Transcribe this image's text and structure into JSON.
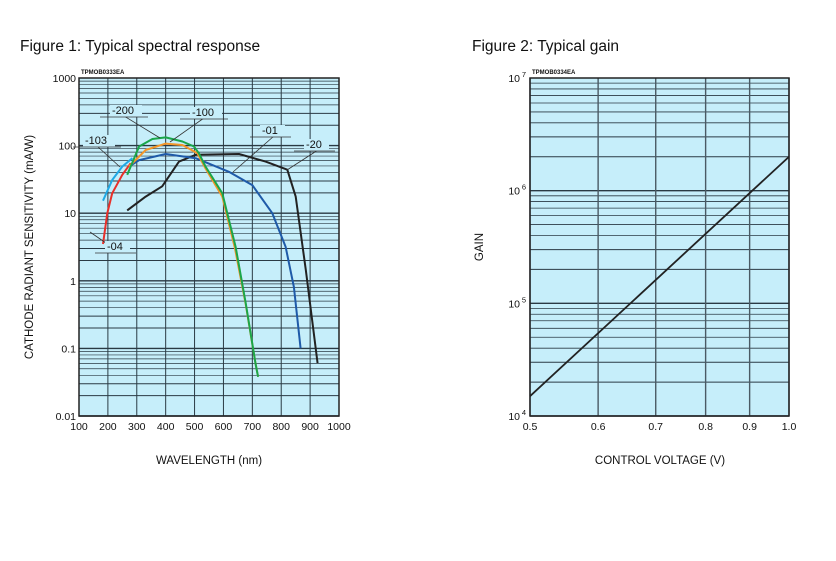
{
  "chart_data": [
    {
      "type": "line",
      "title": "Figure 1: Typical spectral response",
      "code": "TPMOB0333EA",
      "xlabel": "WAVELENGTH (nm)",
      "ylabel": "CATHODE RADIANT SENSITIVITY (mA/W)",
      "xlim": [
        100,
        1000
      ],
      "ylim": [
        0.01,
        1000
      ],
      "yscale": "log",
      "grid": true,
      "xticks": [
        "100",
        "200",
        "300",
        "400",
        "500",
        "600",
        "700",
        "800",
        "900",
        "1000"
      ],
      "yticks": [
        "0.01",
        "0.1",
        "1",
        "10",
        "100",
        "1000"
      ],
      "series": [
        {
          "name": "-200",
          "color": "#1aa64a",
          "x": [
            267,
            308,
            354,
            400,
            458,
            498,
            515,
            538,
            596,
            642,
            677,
            711,
            720
          ],
          "y": [
            37,
            97,
            125,
            132,
            115,
            97,
            77,
            49,
            19.7,
            3.2,
            0.47,
            0.06,
            0.038
          ]
        },
        {
          "name": "-100",
          "color": "#f3962a",
          "x": [
            273,
            331,
            400,
            458,
            510,
            538,
            596,
            640,
            677,
            711,
            720
          ],
          "y": [
            49,
            86,
            107,
            102,
            77,
            46,
            17.6,
            3.0,
            0.45,
            0.06,
            0.038
          ]
        },
        {
          "name": "-103",
          "color": "#1fa9e6",
          "x": [
            183,
            215,
            250,
            285
          ],
          "y": [
            15.3,
            31,
            49,
            65
          ]
        },
        {
          "name": "-04",
          "color": "#e8302a",
          "x": [
            183,
            198,
            215,
            250,
            279
          ],
          "y": [
            3.5,
            10,
            19.7,
            37,
            55
          ]
        },
        {
          "name": "-01",
          "color": "#1f5aa8",
          "x": [
            273,
            308,
            400,
            504,
            619,
            700,
            769,
            815,
            844,
            867
          ],
          "y": [
            49,
            61,
            75,
            65,
            41,
            26,
            10,
            3.2,
            0.81,
            0.1
          ]
        },
        {
          "name": "-20",
          "color": "#222222",
          "x": [
            267,
            331,
            388,
            446,
            504,
            654,
            746,
            821,
            850,
            885,
            926
          ],
          "y": [
            11,
            17.6,
            25,
            58,
            73,
            75,
            58,
            44,
            17.6,
            1.45,
            0.06
          ]
        }
      ]
    },
    {
      "type": "line",
      "title": "Figure 2: Typical gain",
      "code": "TPMOB0334EA",
      "xlabel": "CONTROL VOLTAGE (V)",
      "ylabel": "GAIN",
      "xlim": [
        0.5,
        1.0
      ],
      "xscale": "log",
      "ylim": [
        10000,
        10000000
      ],
      "yscale": "log",
      "grid": true,
      "xticks": [
        "0.5",
        "0.6",
        "0.7",
        "0.8",
        "0.9",
        "1.0"
      ],
      "yticks": [
        {
          "base": "10",
          "exp": "4"
        },
        {
          "base": "10",
          "exp": "5"
        },
        {
          "base": "10",
          "exp": "6"
        },
        {
          "base": "10",
          "exp": "7"
        }
      ],
      "series": [
        {
          "name": "gain",
          "color": "#222222",
          "x": [
            0.5,
            1.0
          ],
          "y": [
            15000,
            2000000
          ]
        }
      ]
    }
  ],
  "colors": {
    "plot_bg": "#c6eefa",
    "grid": "#2a3a44"
  }
}
